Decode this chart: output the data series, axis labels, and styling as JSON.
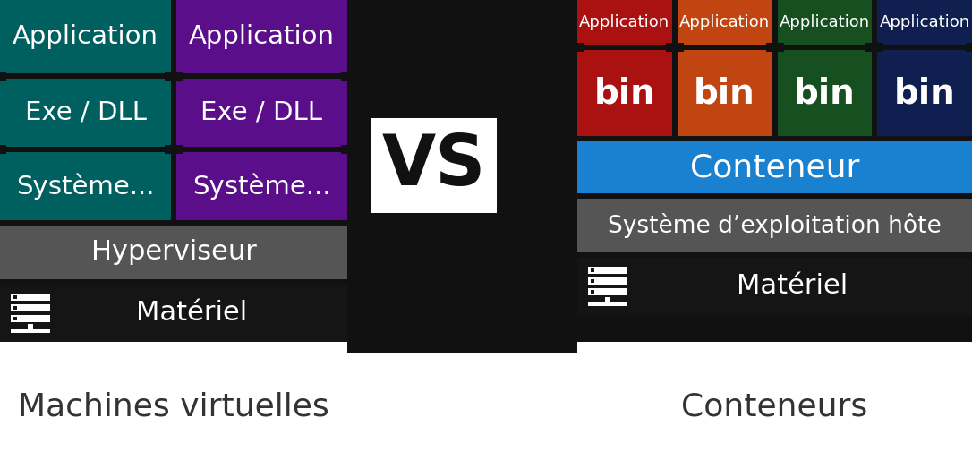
{
  "bg_color": "#111111",
  "left_bg": "#111111",
  "vm_col1_color": "#006060",
  "vm_col2_color": "#5a0e8a",
  "vm_col1_labels": [
    "Application",
    "Exe / DLL",
    "Système..."
  ],
  "vm_col2_labels": [
    "Application",
    "Exe / DLL",
    "Système..."
  ],
  "hyperviseur_color": "#555555",
  "hyperviseur_label": "Hyperviseur",
  "materiel_color": "#151515",
  "materiel_label": "Matériel",
  "cont_colors": [
    "#aa1111",
    "#c04510",
    "#165020",
    "#0f2050"
  ],
  "cont_app_label": "Application",
  "cont_bin_label": "bin",
  "conteneur_color": "#1a80d0",
  "conteneur_label": "Conteneur",
  "os_color": "#555555",
  "os_label": "Système d’exploitation hôte",
  "vs_text": "VS",
  "vs_bg": "#ffffff",
  "vs_text_color": "#111111",
  "title_left": "Machines virtuelles",
  "title_right": "Conteneurs",
  "title_color": "#333333",
  "white": "#ffffff",
  "connector_color": "#111111"
}
